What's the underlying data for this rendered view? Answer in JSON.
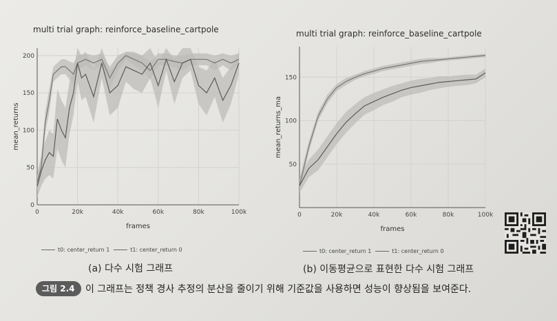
{
  "chart_data": [
    {
      "type": "line",
      "title": "multi trial graph: reinforce_baseline_cartpole",
      "xlabel": "frames",
      "ylabel": "mean_returns",
      "xlim": [
        0,
        100000
      ],
      "ylim": [
        0,
        210
      ],
      "x_ticks": [
        "0",
        "20k",
        "40k",
        "60k",
        "80k",
        "100k"
      ],
      "y_ticks": [
        "0",
        "50",
        "100",
        "150",
        "200"
      ],
      "grid": true,
      "legend_position": "bottom",
      "series": [
        {
          "name": "t0: center_return 1",
          "x": [
            0,
            2000,
            4000,
            6000,
            8000,
            10000,
            12000,
            14000,
            16000,
            18000,
            20000,
            24000,
            28000,
            32000,
            36000,
            40000,
            44000,
            48000,
            52000,
            56000,
            60000,
            64000,
            68000,
            72000,
            76000,
            80000,
            84000,
            88000,
            92000,
            96000,
            100000
          ],
          "y": [
            30,
            50,
            110,
            140,
            175,
            180,
            185,
            185,
            180,
            175,
            190,
            195,
            190,
            195,
            170,
            190,
            200,
            195,
            190,
            180,
            195,
            195,
            192,
            190,
            195,
            195,
            195,
            190,
            195,
            190,
            195
          ],
          "band": [
            10,
            15,
            15,
            15,
            10,
            10,
            10,
            10,
            12,
            15,
            10,
            8,
            10,
            8,
            15,
            10,
            5,
            8,
            10,
            12,
            8,
            8,
            8,
            10,
            8,
            8,
            8,
            10,
            8,
            10,
            8
          ]
        },
        {
          "name": "t1: center_return 0",
          "x": [
            0,
            2000,
            4000,
            6000,
            8000,
            10000,
            12000,
            14000,
            16000,
            18000,
            20000,
            22000,
            24000,
            28000,
            32000,
            36000,
            40000,
            44000,
            48000,
            52000,
            56000,
            60000,
            64000,
            68000,
            72000,
            76000,
            80000,
            84000,
            88000,
            92000,
            96000,
            100000
          ],
          "y": [
            25,
            45,
            60,
            70,
            65,
            115,
            100,
            90,
            130,
            150,
            190,
            170,
            175,
            145,
            190,
            150,
            160,
            185,
            180,
            175,
            190,
            160,
            195,
            165,
            190,
            195,
            160,
            150,
            170,
            140,
            160,
            190
          ],
          "band": [
            15,
            20,
            25,
            30,
            30,
            40,
            40,
            40,
            35,
            30,
            25,
            30,
            30,
            35,
            20,
            30,
            30,
            20,
            25,
            25,
            20,
            30,
            15,
            30,
            20,
            15,
            25,
            30,
            25,
            30,
            25,
            15
          ]
        }
      ]
    },
    {
      "type": "line",
      "title": "multi trial graph: reinforce_baseline_cartpole",
      "xlabel": "frames",
      "ylabel": "mean_returns_ma",
      "xlim": [
        0,
        100000
      ],
      "ylim": [
        0,
        185
      ],
      "x_ticks": [
        "0",
        "20k",
        "40k",
        "60k",
        "80k",
        "100k"
      ],
      "y_ticks": [
        "50",
        "100",
        "150"
      ],
      "grid": true,
      "legend_position": "bottom",
      "series": [
        {
          "name": "t0: center_return 1",
          "x": [
            0,
            5000,
            10000,
            15000,
            20000,
            25000,
            30000,
            35000,
            40000,
            45000,
            50000,
            55000,
            60000,
            65000,
            70000,
            75000,
            80000,
            85000,
            90000,
            95000,
            100000
          ],
          "y": [
            25,
            70,
            105,
            125,
            138,
            145,
            150,
            154,
            157,
            160,
            162,
            164,
            166,
            168,
            169,
            170,
            171,
            172,
            173,
            174,
            175
          ],
          "band": [
            8,
            6,
            5,
            5,
            4,
            4,
            3,
            3,
            3,
            3,
            3,
            3,
            3,
            3,
            3,
            2,
            2,
            2,
            2,
            2,
            2
          ]
        },
        {
          "name": "t1: center_return 0",
          "x": [
            0,
            5000,
            10000,
            15000,
            20000,
            25000,
            30000,
            35000,
            40000,
            45000,
            50000,
            55000,
            60000,
            65000,
            70000,
            75000,
            80000,
            85000,
            90000,
            95000,
            100000
          ],
          "y": [
            25,
            45,
            55,
            70,
            85,
            98,
            108,
            117,
            122,
            127,
            131,
            135,
            138,
            140,
            142,
            144,
            145,
            146,
            147,
            148,
            155
          ],
          "band": [
            8,
            10,
            12,
            12,
            12,
            12,
            11,
            10,
            10,
            9,
            9,
            8,
            8,
            8,
            7,
            7,
            6,
            6,
            6,
            5,
            5
          ]
        }
      ]
    }
  ],
  "captions": {
    "a": "(a) 다수 시험 그래프",
    "b": "(b) 이동평균으로 표현한 다수 시험 그래프"
  },
  "figure": {
    "label": "그림 2.4",
    "text": "이 그래프는 정책 경사 추정의 분산을 줄이기 위해 기준값을 사용하면 성능이 향상됨을 보여준다."
  },
  "colors": {
    "band": "#bdbcb8",
    "line_t0": "#777777",
    "line_t1": "#5a5a5a",
    "badge": "#5b5b5b"
  }
}
